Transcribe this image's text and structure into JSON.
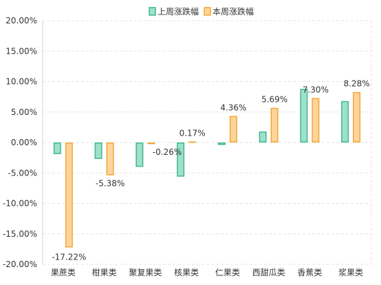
{
  "chart_data": {
    "type": "bar",
    "categories": [
      "果蔗类",
      "柑果类",
      "聚复果类",
      "核果类",
      "仁果类",
      "西甜瓜类",
      "香蕉类",
      "浆果类"
    ],
    "series": [
      {
        "name": "上周涨跌幅",
        "values": [
          -1.9,
          -2.7,
          -4.0,
          -5.6,
          -0.4,
          1.8,
          8.8,
          6.8
        ],
        "color": "#3db88f",
        "fill": "#9fe0cb"
      },
      {
        "name": "本周涨跌幅",
        "values": [
          -17.22,
          -5.38,
          -0.26,
          0.17,
          4.36,
          5.69,
          7.3,
          8.28
        ],
        "color": "#f0a73a",
        "fill": "#ffd49a"
      }
    ],
    "data_labels": {
      "series_index": 1,
      "labels": [
        "-17.22%",
        "-5.38%",
        "-0.26%",
        "0.17%",
        "4.36%",
        "5.69%",
        "7.30%",
        "8.28%"
      ]
    },
    "y_ticks": [
      {
        "value": 20,
        "label": "20.00%"
      },
      {
        "value": 15,
        "label": "15.00%"
      },
      {
        "value": 10,
        "label": "10.00%"
      },
      {
        "value": 5,
        "label": "5.00%"
      },
      {
        "value": 0,
        "label": "0.00%"
      },
      {
        "value": -5,
        "label": "-5.00%"
      },
      {
        "value": -10,
        "label": "-10.00%"
      },
      {
        "value": -15,
        "label": "-15.00%"
      },
      {
        "value": -20,
        "label": "-20.00%"
      }
    ],
    "ylim": [
      -20,
      20
    ],
    "grid": true,
    "legend": "top-center",
    "title": "",
    "xlabel": "",
    "ylabel": ""
  }
}
